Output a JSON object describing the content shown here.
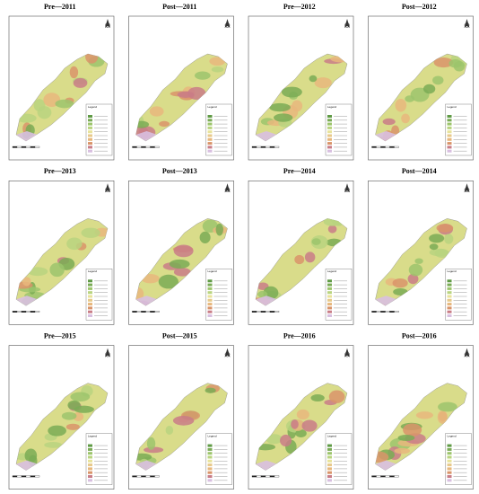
{
  "maps": [
    {
      "title": "Pre—2011"
    },
    {
      "title": "Post—2011"
    },
    {
      "title": "Pre—2012"
    },
    {
      "title": "Post—2012"
    },
    {
      "title": "Pre—2013"
    },
    {
      "title": "Post—2013"
    },
    {
      "title": "Pre—2014"
    },
    {
      "title": "Post—2014"
    },
    {
      "title": "Pre—2015"
    },
    {
      "title": "Post—2015"
    },
    {
      "title": "Pre—2016"
    },
    {
      "title": "Post—2016"
    }
  ],
  "legend_title": "Legend"
}
